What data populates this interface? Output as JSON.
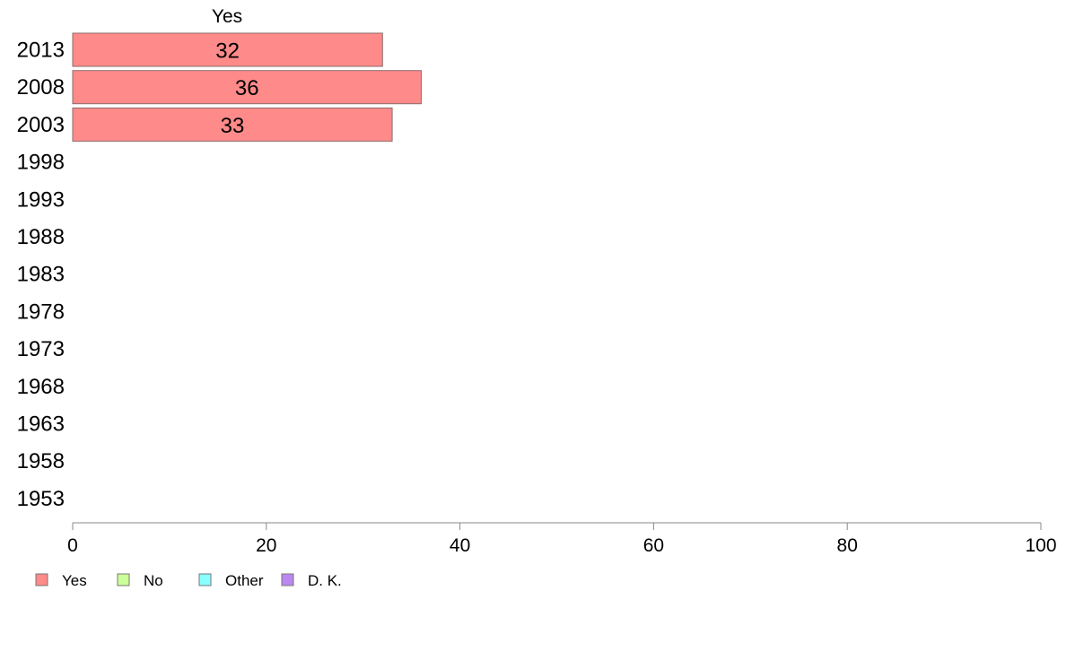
{
  "chart_data": {
    "type": "bar",
    "orientation": "horizontal",
    "column_header": "Yes",
    "categories": [
      "2013",
      "2008",
      "2003",
      "1998",
      "1993",
      "1988",
      "1983",
      "1978",
      "1973",
      "1968",
      "1963",
      "1958",
      "1953"
    ],
    "series": [
      {
        "name": "Yes",
        "color": "#ff8a8a",
        "values": [
          32,
          36,
          33,
          null,
          null,
          null,
          null,
          null,
          null,
          null,
          null,
          null,
          null
        ]
      },
      {
        "name": "No",
        "color": "#ccff99",
        "values": [
          null,
          null,
          null,
          null,
          null,
          null,
          null,
          null,
          null,
          null,
          null,
          null,
          null
        ]
      },
      {
        "name": "Other",
        "color": "#8affff",
        "values": [
          null,
          null,
          null,
          null,
          null,
          null,
          null,
          null,
          null,
          null,
          null,
          null,
          null
        ]
      },
      {
        "name": "D. K.",
        "color": "#bb88f0",
        "values": [
          null,
          null,
          null,
          null,
          null,
          null,
          null,
          null,
          null,
          null,
          null,
          null,
          null
        ]
      }
    ],
    "xlim": [
      0,
      100
    ],
    "xticks": [
      0,
      20,
      40,
      60,
      80,
      100
    ],
    "grid": false,
    "legend": [
      "Yes",
      "No",
      "Other",
      "D. K."
    ],
    "legend_position": "bottom-left"
  }
}
